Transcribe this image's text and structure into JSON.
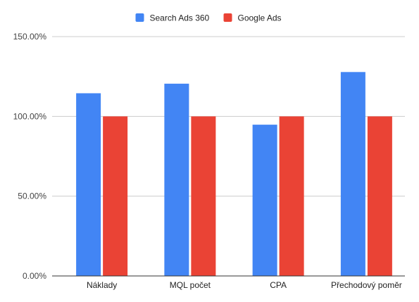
{
  "chart_data": {
    "type": "bar",
    "categories": [
      "Náklady",
      "MQL počet",
      "CPA",
      "Přechodový poměr"
    ],
    "series": [
      {
        "name": "Search Ads 360",
        "color": "#4285f4",
        "values": [
          114.5,
          120.5,
          94.8,
          127.8
        ]
      },
      {
        "name": "Google Ads",
        "color": "#ea4335",
        "values": [
          100,
          100,
          100,
          100
        ]
      }
    ],
    "title": "",
    "xlabel": "",
    "ylabel": "",
    "ylim": [
      0,
      150
    ],
    "yticks": [
      0,
      50,
      100,
      150
    ],
    "ytick_labels": [
      "0.00%",
      "50.00%",
      "100.00%",
      "150.00%"
    ],
    "grid": true,
    "legend_position": "top-center",
    "gridline_color": "#cccccc",
    "axis_color": "#333333"
  }
}
